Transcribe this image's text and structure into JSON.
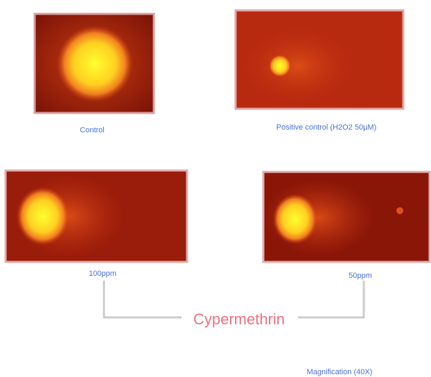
{
  "panels": [
    {
      "label": "Control"
    },
    {
      "label": "Positive control (H2O2 50µM)"
    },
    {
      "label": "100ppm"
    },
    {
      "label": "50ppm"
    }
  ],
  "treatment": "Cypermethrin",
  "magnification": "Magnification (40X)"
}
